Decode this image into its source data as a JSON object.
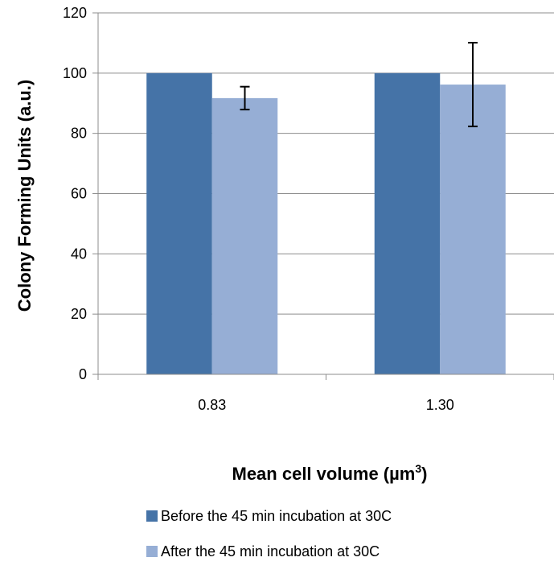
{
  "chart_data": {
    "type": "bar",
    "categories": [
      "0.83",
      "1.30"
    ],
    "series": [
      {
        "name": "Before the 45 min incubation at 30C",
        "values": [
          100,
          100
        ],
        "errors": [
          null,
          null
        ],
        "color": "#4573a7"
      },
      {
        "name": "After the 45 min incubation at 30C",
        "values": [
          91.7,
          96.2
        ],
        "errors": [
          3.8,
          13.9
        ],
        "color": "#96aed5"
      }
    ],
    "ylabel": "Colony Forming Units (a.u.)",
    "xlabel": "Mean cell volume (µm",
    "xlabel_sup": "3",
    "xlabel_end": ")",
    "ylim": [
      0,
      120
    ],
    "yticks": [
      0,
      20,
      40,
      60,
      80,
      100,
      120
    ],
    "grid": true,
    "legend_position": "bottom"
  }
}
